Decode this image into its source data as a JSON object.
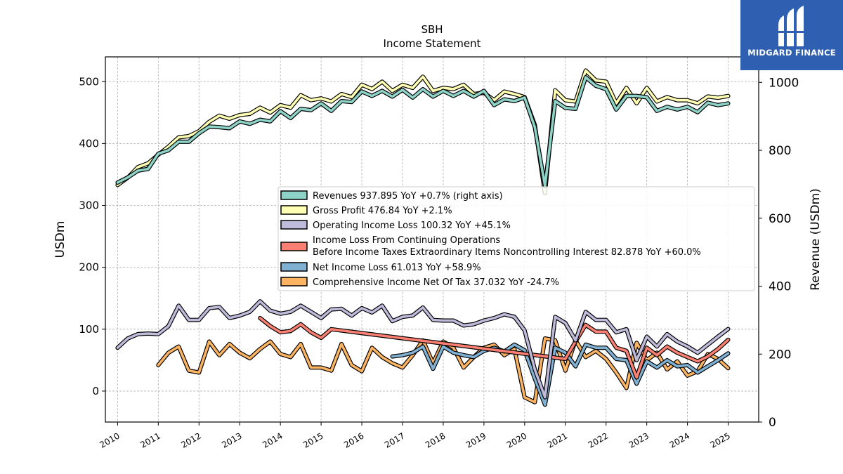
{
  "chart_data": {
    "type": "line",
    "title": "SBH",
    "subtitle": "Income Statement",
    "ylabel_left": "USDm",
    "ylabel_right": "Revenue (USDm)",
    "ylim_left": [
      -50,
      540
    ],
    "ylim_right": [
      0,
      1075
    ],
    "xlim": [
      2009.7,
      2025.75
    ],
    "x_ticks": [
      "2010",
      "2011",
      "2012",
      "2013",
      "2014",
      "2015",
      "2016",
      "2017",
      "2018",
      "2019",
      "2020",
      "2021",
      "2022",
      "2023",
      "2024",
      "2025"
    ],
    "y_ticks_left": [
      0,
      100,
      200,
      300,
      400,
      500
    ],
    "y_ticks_right": [
      0,
      200,
      400,
      600,
      800,
      1000
    ],
    "grid": true,
    "legend_position": "center-right",
    "series": [
      {
        "name": "Revenues",
        "legend": "Revenues  937.895 YoY +0.7% (right axis)",
        "axis": "right",
        "color": "#8dd3c7",
        "x": [
          2010.0,
          2010.25,
          2010.5,
          2010.75,
          2011.0,
          2011.25,
          2011.5,
          2011.75,
          2012.0,
          2012.25,
          2012.5,
          2012.75,
          2013.0,
          2013.25,
          2013.5,
          2013.75,
          2014.0,
          2014.25,
          2014.5,
          2014.75,
          2015.0,
          2015.25,
          2015.5,
          2015.75,
          2016.0,
          2016.25,
          2016.5,
          2016.75,
          2017.0,
          2017.25,
          2017.5,
          2017.75,
          2018.0,
          2018.25,
          2018.5,
          2018.75,
          2019.0,
          2019.25,
          2019.5,
          2019.75,
          2020.0,
          2020.25,
          2020.5,
          2020.75,
          2021.0,
          2021.25,
          2021.5,
          2021.75,
          2022.0,
          2022.25,
          2022.5,
          2022.75,
          2023.0,
          2023.25,
          2023.5,
          2023.75,
          2024.0,
          2024.25,
          2024.5,
          2024.75,
          2025.0
        ],
        "values": [
          705,
          720,
          740,
          745,
          790,
          800,
          825,
          825,
          850,
          870,
          868,
          865,
          885,
          878,
          890,
          885,
          915,
          895,
          922,
          918,
          938,
          916,
          945,
          942,
          973,
          960,
          975,
          958,
          978,
          955,
          980,
          958,
          975,
          960,
          975,
          958,
          975,
          933,
          950,
          945,
          955,
          868,
          695,
          945,
          925,
          922,
          1015,
          990,
          980,
          920,
          960,
          960,
          956,
          916,
          928,
          920,
          928,
          912,
          940,
          933,
          937.895
        ]
      },
      {
        "name": "Gross Profit",
        "legend": "Gross Profit  476.84 YoY +2.1%",
        "axis": "left",
        "color": "#ffffb3",
        "x": [
          2010.0,
          2010.25,
          2010.5,
          2010.75,
          2011.0,
          2011.25,
          2011.5,
          2011.75,
          2012.0,
          2012.25,
          2012.5,
          2012.75,
          2013.0,
          2013.25,
          2013.5,
          2013.75,
          2014.0,
          2014.25,
          2014.5,
          2014.75,
          2015.0,
          2015.25,
          2015.5,
          2015.75,
          2016.0,
          2016.25,
          2016.5,
          2016.75,
          2017.0,
          2017.25,
          2017.5,
          2017.75,
          2018.0,
          2018.25,
          2018.5,
          2018.75,
          2019.0,
          2019.25,
          2019.5,
          2019.75,
          2020.0,
          2020.25,
          2020.5,
          2020.75,
          2021.0,
          2021.25,
          2021.5,
          2021.75,
          2022.0,
          2022.25,
          2022.5,
          2022.75,
          2023.0,
          2023.25,
          2023.5,
          2023.75,
          2024.0,
          2024.25,
          2024.5,
          2024.75,
          2025.0
        ],
        "values": [
          333,
          345,
          362,
          368,
          382,
          395,
          410,
          412,
          420,
          435,
          445,
          440,
          446,
          448,
          458,
          450,
          462,
          458,
          478,
          470,
          473,
          468,
          480,
          475,
          495,
          488,
          500,
          485,
          495,
          490,
          508,
          485,
          490,
          488,
          495,
          480,
          482,
          470,
          484,
          480,
          475,
          430,
          320,
          486,
          470,
          468,
          518,
          502,
          500,
          465,
          490,
          465,
          490,
          468,
          475,
          470,
          470,
          465,
          476,
          474,
          476.84
        ]
      },
      {
        "name": "Operating Income Loss",
        "legend": "Operating Income Loss  100.32 YoY +45.1%",
        "axis": "left",
        "color": "#bebada",
        "x": [
          2010.0,
          2010.25,
          2010.5,
          2010.75,
          2011.0,
          2011.25,
          2011.5,
          2011.75,
          2012.0,
          2012.25,
          2012.5,
          2012.75,
          2013.0,
          2013.25,
          2013.5,
          2013.75,
          2014.0,
          2014.25,
          2014.5,
          2014.75,
          2015.0,
          2015.25,
          2015.5,
          2015.75,
          2016.0,
          2016.25,
          2016.5,
          2016.75,
          2017.0,
          2017.25,
          2017.5,
          2017.75,
          2018.0,
          2018.25,
          2018.5,
          2018.75,
          2019.0,
          2019.25,
          2019.5,
          2019.75,
          2020.0,
          2020.25,
          2020.5,
          2020.75,
          2021.0,
          2021.25,
          2021.5,
          2021.75,
          2022.0,
          2022.25,
          2022.5,
          2022.75,
          2023.0,
          2023.25,
          2023.5,
          2023.75,
          2024.0,
          2024.25,
          2024.5,
          2024.75,
          2025.0
        ],
        "values": [
          70,
          85,
          92,
          93,
          92,
          105,
          138,
          115,
          115,
          134,
          136,
          118,
          122,
          128,
          145,
          130,
          125,
          128,
          138,
          128,
          118,
          132,
          133,
          122,
          134,
          127,
          138,
          113,
          120,
          122,
          135,
          115,
          114,
          114,
          106,
          108,
          114,
          118,
          124,
          120,
          98,
          35,
          -10,
          120,
          110,
          82,
          128,
          115,
          115,
          95,
          100,
          50,
          88,
          72,
          92,
          80,
          72,
          62,
          75,
          88,
          100.32
        ]
      },
      {
        "name": "Income Loss From Continuing Operations Before Income Taxes Extraordinary Items Noncontrolling Interest",
        "legend_line1": "Income Loss From Continuing Operations",
        "legend_line2": "Before Income Taxes Extraordinary Items Noncontrolling Interest  82.878 YoY +60.0%",
        "axis": "left",
        "color": "#fb8072",
        "x": [
          2013.5,
          2013.75,
          2014.0,
          2014.25,
          2014.5,
          2014.75,
          2015.0,
          2015.25,
          2021.0,
          2021.25,
          2021.5,
          2021.75,
          2022.0,
          2022.25,
          2022.5,
          2022.75,
          2023.0,
          2023.25,
          2023.5,
          2023.75,
          2024.0,
          2024.25,
          2024.5,
          2024.75,
          2025.0
        ],
        "values": [
          118,
          105,
          95,
          97,
          108,
          95,
          86,
          100,
          52,
          80,
          107,
          96,
          96,
          70,
          65,
          22,
          70,
          58,
          72,
          62,
          55,
          48,
          56,
          68,
          82.878
        ]
      },
      {
        "name": "Net Income Loss",
        "legend": "Net Income Loss  61.013 YoY +58.9%",
        "axis": "left",
        "color": "#80b1d3",
        "x": [
          2016.75,
          2017.0,
          2017.25,
          2017.5,
          2017.75,
          2018.0,
          2018.25,
          2018.5,
          2018.75,
          2019.0,
          2019.25,
          2019.5,
          2019.75,
          2020.0,
          2020.25,
          2020.5,
          2020.75,
          2021.0,
          2021.25,
          2021.5,
          2021.75,
          2022.0,
          2022.25,
          2022.5,
          2022.75,
          2023.0,
          2023.25,
          2023.5,
          2023.75,
          2024.0,
          2024.25,
          2024.5,
          2024.75,
          2025.0
        ],
        "values": [
          56,
          58,
          62,
          72,
          36,
          72,
          62,
          58,
          55,
          65,
          70,
          64,
          75,
          66,
          20,
          -22,
          70,
          62,
          40,
          75,
          70,
          70,
          52,
          50,
          12,
          48,
          38,
          50,
          40,
          42,
          30,
          40,
          50,
          61.013
        ]
      },
      {
        "name": "Comprehensive Income Net Of Tax",
        "legend": "Comprehensive Income Net Of Tax  37.032 YoY -24.7%",
        "axis": "left",
        "color": "#fdb462",
        "x": [
          2011.0,
          2011.25,
          2011.5,
          2011.75,
          2012.0,
          2012.25,
          2012.5,
          2012.75,
          2013.0,
          2013.25,
          2013.5,
          2013.75,
          2014.0,
          2014.25,
          2014.5,
          2014.75,
          2015.0,
          2015.25,
          2015.5,
          2015.75,
          2016.0,
          2016.25,
          2016.5,
          2016.75,
          2017.0,
          2017.25,
          2017.5,
          2017.75,
          2018.0,
          2018.25,
          2018.5,
          2018.75,
          2019.0,
          2019.25,
          2019.5,
          2019.75,
          2020.0,
          2020.25,
          2020.5,
          2020.75,
          2021.0,
          2021.25,
          2021.5,
          2021.75,
          2022.0,
          2022.25,
          2022.5,
          2022.75,
          2023.0,
          2023.25,
          2023.5,
          2023.75,
          2024.0,
          2024.25,
          2024.5,
          2024.75,
          2025.0
        ],
        "values": [
          42,
          62,
          72,
          33,
          30,
          80,
          58,
          76,
          62,
          53,
          68,
          80,
          60,
          55,
          76,
          38,
          38,
          33,
          76,
          42,
          32,
          70,
          55,
          45,
          38,
          58,
          82,
          45,
          80,
          70,
          38,
          55,
          70,
          75,
          58,
          68,
          -10,
          -18,
          85,
          82,
          33,
          82,
          55,
          65,
          52,
          30,
          5,
          78,
          50,
          62,
          35,
          48,
          25,
          32,
          60,
          52,
          37.032
        ]
      }
    ]
  },
  "logo": {
    "text": "MIDGARD FINANCE",
    "icon": "midgard-logo-icon"
  }
}
